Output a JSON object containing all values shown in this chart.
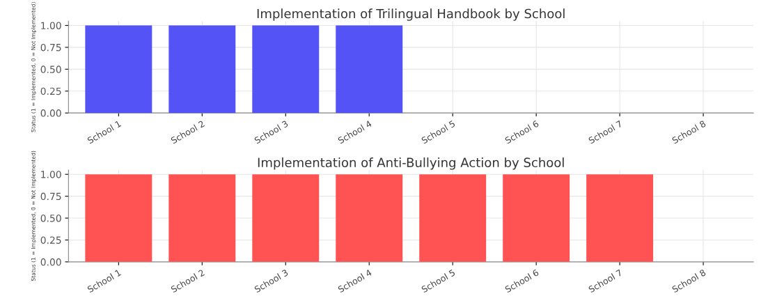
{
  "chart_data": [
    {
      "type": "bar",
      "title": "Implementation of Trilingual Handbook by School",
      "ylabel": "Status (1 = Implemented, 0 = Not Implemented)",
      "categories": [
        "School 1",
        "School 2",
        "School 3",
        "School 4",
        "School 5",
        "School 6",
        "School 7",
        "School 8"
      ],
      "values": [
        1,
        1,
        1,
        1,
        0,
        0,
        0,
        0
      ],
      "color": "#4a4af5",
      "ylim": [
        0,
        1.05
      ],
      "yticks": [
        {
          "value": 0,
          "label": "0.00"
        },
        {
          "value": 0.25,
          "label": "0.25"
        },
        {
          "value": 0.5,
          "label": "0.50"
        },
        {
          "value": 0.75,
          "label": "0.75"
        },
        {
          "value": 1,
          "label": "1.00"
        }
      ],
      "grid": true
    },
    {
      "type": "bar",
      "title": "Implementation of Anti-Bullying Action by School",
      "ylabel": "Status (1 = Implemented, 0 = Not Implemented)",
      "categories": [
        "School 1",
        "School 2",
        "School 3",
        "School 4",
        "School 5",
        "School 6",
        "School 7",
        "School 8"
      ],
      "values": [
        1,
        1,
        1,
        1,
        1,
        1,
        1,
        0
      ],
      "color": "#ff4a4a",
      "ylim": [
        0,
        1.05
      ],
      "yticks": [
        {
          "value": 0,
          "label": "0.00"
        },
        {
          "value": 0.25,
          "label": "0.25"
        },
        {
          "value": 0.5,
          "label": "0.50"
        },
        {
          "value": 0.75,
          "label": "0.75"
        },
        {
          "value": 1,
          "label": "1.00"
        }
      ],
      "grid": true
    }
  ]
}
